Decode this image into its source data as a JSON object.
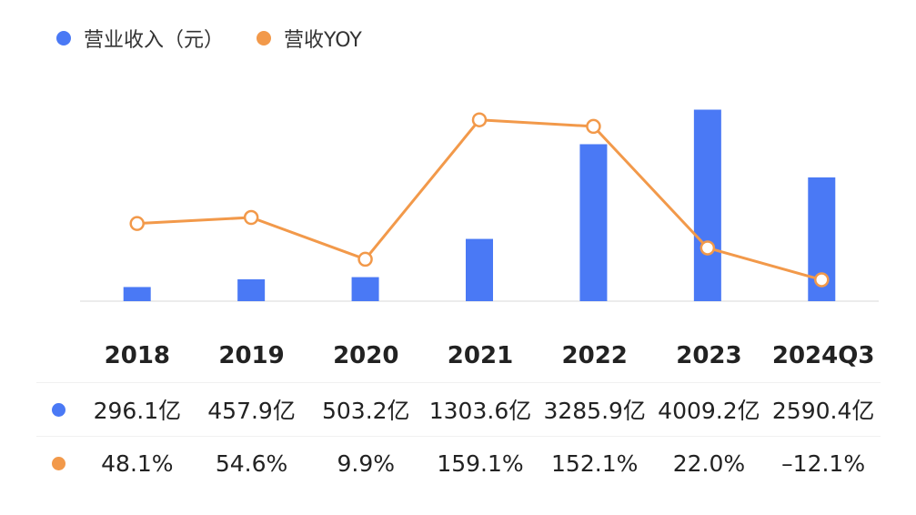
{
  "legend": {
    "revenue_label": "营业收入（元）",
    "yoy_label": "营收YOY"
  },
  "colors": {
    "bar": "#4a79f5",
    "line": "#f2994a",
    "baseline": "#e6e6e6"
  },
  "chart_data": {
    "type": "bar+line",
    "categories": [
      "2018",
      "2019",
      "2020",
      "2021",
      "2022",
      "2023",
      "2024Q3"
    ],
    "series": [
      {
        "name": "营业收入（元）",
        "type": "bar",
        "values": [
          296.1,
          457.9,
          503.2,
          1303.6,
          3285.9,
          4009.2,
          2590.4
        ],
        "unit": "亿"
      },
      {
        "name": "营收YOY",
        "type": "line",
        "values": [
          48.1,
          54.6,
          9.9,
          159.1,
          152.1,
          22.0,
          -12.1
        ],
        "unit": "%"
      }
    ],
    "bar_ylim": [
      0,
      4400
    ],
    "line_ylim": [
      -35,
      190
    ],
    "legend_position": "top-left",
    "grid": false
  },
  "table": {
    "headers": [
      "2018",
      "2019",
      "2020",
      "2021",
      "2022",
      "2023",
      "2024Q3"
    ],
    "revenue_row": [
      "296.1亿",
      "457.9亿",
      "503.2亿",
      "1303.6亿",
      "3285.9亿",
      "4009.2亿",
      "2590.4亿"
    ],
    "yoy_row": [
      "48.1%",
      "54.6%",
      "9.9%",
      "159.1%",
      "152.1%",
      "22.0%",
      "–12.1%"
    ]
  }
}
